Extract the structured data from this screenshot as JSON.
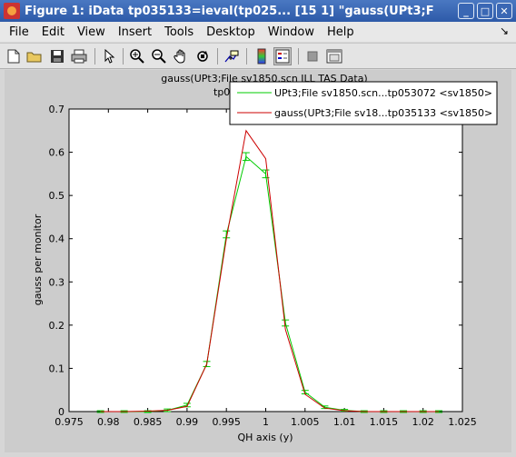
{
  "window": {
    "title": "Figure 1: iData tp035133=ieval(tp025... [15   1] \"gauss(UPt3;F",
    "buttons": {
      "minimize": "_",
      "maximize": "□",
      "close": "✕"
    }
  },
  "menubar": {
    "items": [
      "File",
      "Edit",
      "View",
      "Insert",
      "Tools",
      "Desktop",
      "Window",
      "Help"
    ],
    "dock_icon": "↘"
  },
  "toolbar": {
    "icons": [
      "new-icon",
      "open-icon",
      "save-icon",
      "print-icon",
      "pointer-icon",
      "zoom-in-icon",
      "zoom-out-icon",
      "pan-icon",
      "rotate-icon",
      "data-cursor-icon",
      "colorbar-icon",
      "legend-icon",
      "hide-plot-tools-icon",
      "show-plot-tools-icon"
    ]
  },
  "chart_data": {
    "type": "line",
    "title_line1": "gauss(UPt3;File sv1850.scn ILL TAS Data)",
    "title_line2": "tp0",
    "xlabel": "QH axis (y)",
    "ylabel": "gauss per monitor",
    "xlim": [
      0.975,
      1.025
    ],
    "ylim": [
      0,
      0.7
    ],
    "xticks": [
      "0.975",
      "0.98",
      "0.985",
      "0.99",
      "0.995",
      "1",
      "1.005",
      "1.01",
      "1.015",
      "1.02",
      "1.025"
    ],
    "yticks": [
      "0",
      "0.1",
      "0.2",
      "0.3",
      "0.4",
      "0.5",
      "0.6",
      "0.7"
    ],
    "grid": false,
    "legend_position": "top-right",
    "series": [
      {
        "name": "UPt3;File sv1850.scn...tp053072 <sv1850>",
        "color": "#00cc00",
        "errorbars": true,
        "x": [
          0.979,
          0.982,
          0.985,
          0.9875,
          0.99,
          0.9925,
          0.995,
          0.9975,
          1.0,
          1.0025,
          1.005,
          1.0075,
          1.01,
          1.0125,
          1.015,
          1.0175,
          1.02,
          1.022
        ],
        "y": [
          0.0,
          0.0,
          0.0,
          0.003,
          0.015,
          0.11,
          0.41,
          0.59,
          0.55,
          0.205,
          0.045,
          0.01,
          0.003,
          0.0,
          0.0,
          0.0,
          0.0,
          0.0
        ],
        "err": [
          0.002,
          0.002,
          0.002,
          0.003,
          0.004,
          0.006,
          0.008,
          0.009,
          0.009,
          0.007,
          0.004,
          0.003,
          0.002,
          0.002,
          0.002,
          0.002,
          0.002,
          0.002
        ]
      },
      {
        "name": "gauss(UPt3;File sv18...tp035133 <sv1850>",
        "color": "#cc0000",
        "x": [
          0.979,
          0.982,
          0.985,
          0.9875,
          0.99,
          0.9925,
          0.995,
          0.9975,
          1.0,
          1.0025,
          1.005,
          1.0075,
          1.01,
          1.0125,
          1.015,
          1.0175,
          1.02,
          1.022
        ],
        "y": [
          0.0,
          0.0,
          0.001,
          0.003,
          0.012,
          0.11,
          0.4,
          0.65,
          0.585,
          0.19,
          0.04,
          0.008,
          0.002,
          0.0,
          0.0,
          0.0,
          0.0,
          0.0
        ]
      }
    ]
  }
}
